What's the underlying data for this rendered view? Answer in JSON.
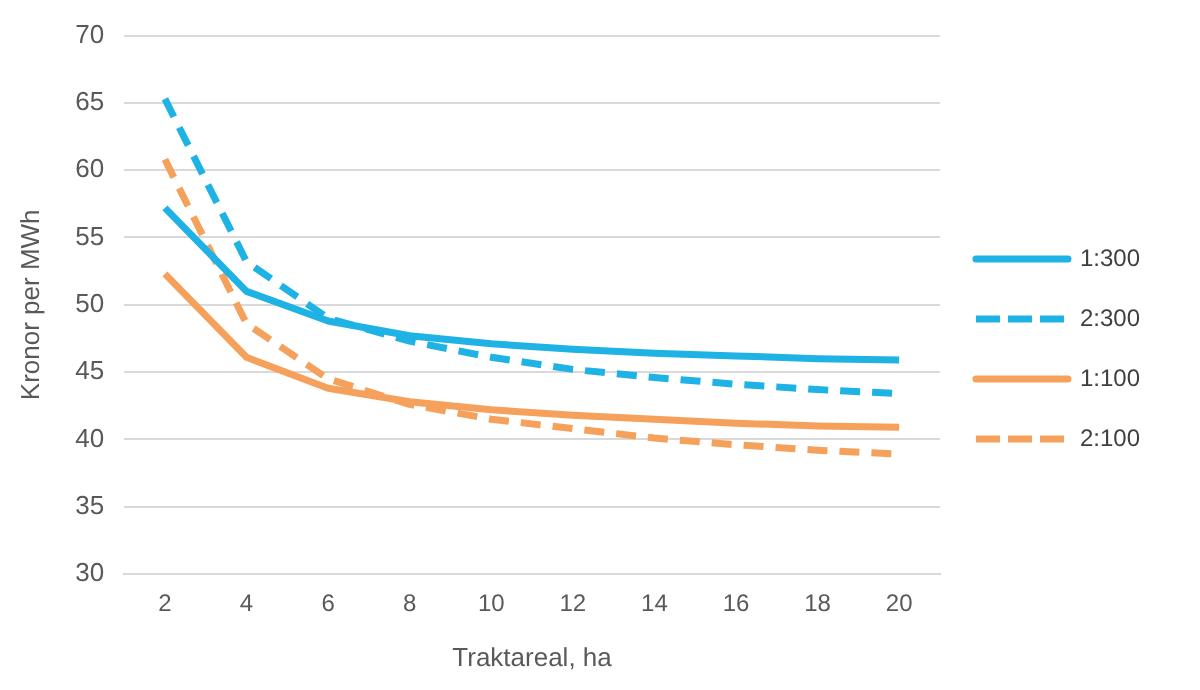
{
  "chart_data": {
    "type": "line",
    "xlabel": "Traktareal, ha",
    "ylabel": "Kronor per MWh",
    "categories": [
      "2",
      "4",
      "6",
      "8",
      "10",
      "12",
      "14",
      "16",
      "18",
      "20"
    ],
    "ylim": [
      30,
      70
    ],
    "yticks": [
      30,
      35,
      40,
      45,
      50,
      55,
      60,
      65,
      70
    ],
    "grid": "y",
    "legend": "right",
    "marker": "none",
    "series": [
      {
        "name": "1:300",
        "color": "#1fb2e4",
        "line_style": "solid",
        "values": [
          57.2,
          51,
          48.8,
          47.7,
          47.1,
          46.7,
          46.4,
          46.2,
          46.0,
          45.9
        ]
      },
      {
        "name": "2:300",
        "color": "#1fb2e4",
        "line_style": "dashed",
        "values": [
          65.3,
          53.2,
          49,
          47.3,
          46.1,
          45.2,
          44.6,
          44.1,
          43.7,
          43.4
        ]
      },
      {
        "name": "1:100",
        "color": "#f5a15c",
        "line_style": "solid",
        "values": [
          52.3,
          46.1,
          43.8,
          42.8,
          42.2,
          41.8,
          41.5,
          41.2,
          41.0,
          40.9
        ]
      },
      {
        "name": "2:100",
        "color": "#f5a15c",
        "line_style": "dashed",
        "values": [
          60.8,
          48.6,
          44.5,
          42.6,
          41.5,
          40.8,
          40.1,
          39.6,
          39.2,
          38.9
        ]
      }
    ]
  }
}
